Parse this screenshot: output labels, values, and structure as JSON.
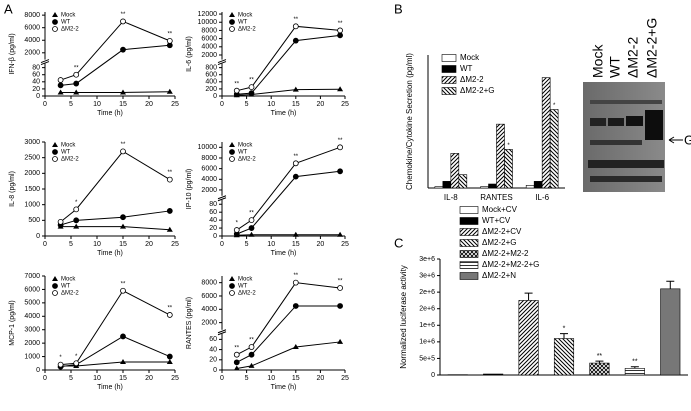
{
  "panel_labels": [
    "A",
    "B",
    "C"
  ],
  "chart_data": [
    {
      "type": "line",
      "ylabel": "IFN-β (pg/ml)",
      "xlabel": "Time (h)",
      "x": [
        3,
        6,
        15,
        24
      ],
      "xlim": [
        0,
        25
      ],
      "xticks": [
        0,
        5,
        10,
        15,
        20,
        25
      ],
      "ylim": [
        0,
        8500
      ],
      "ybreak": [
        90,
        1000
      ],
      "yticks": [
        0,
        20,
        40,
        60,
        80,
        2000,
        4000,
        6000,
        8000
      ],
      "series": [
        {
          "name": "Mock",
          "color": "#000000",
          "marker": "triangle",
          "values": [
            10,
            10,
            10,
            12
          ]
        },
        {
          "name": "WT",
          "color": "#000000",
          "marker": "circle",
          "values": [
            30,
            35,
            2500,
            3200
          ]
        },
        {
          "name": "ΔM2-2",
          "color": "#000000",
          "marker": "open-circle",
          "values": [
            45,
            60,
            7000,
            3900
          ],
          "sig": [
            null,
            "**",
            "**",
            "**"
          ]
        }
      ]
    },
    {
      "type": "line",
      "ylabel": "IL-6 (pg/ml)",
      "xlabel": "Time (h)",
      "x": [
        3,
        6,
        15,
        24
      ],
      "xlim": [
        0,
        25
      ],
      "xticks": [
        0,
        5,
        10,
        15,
        20,
        25
      ],
      "ylim": [
        0,
        12500
      ],
      "ybreak": [
        900,
        1000
      ],
      "yticks": [
        0,
        200,
        400,
        600,
        800,
        2000,
        4000,
        6000,
        8000,
        10000,
        12000
      ],
      "series": [
        {
          "name": "Mock",
          "color": "#000000",
          "marker": "triangle",
          "values": [
            20,
            40,
            180,
            190
          ]
        },
        {
          "name": "WT",
          "color": "#000000",
          "marker": "circle",
          "values": [
            50,
            80,
            5500,
            6800
          ]
        },
        {
          "name": "ΔM2-2",
          "color": "#000000",
          "marker": "open-circle",
          "values": [
            150,
            250,
            9000,
            8000
          ],
          "sig": [
            "**",
            "**",
            "**",
            "**"
          ]
        }
      ]
    },
    {
      "type": "line",
      "ylabel": "IL-8 (pg/ml)",
      "xlabel": "Time (h)",
      "x": [
        3,
        6,
        15,
        24
      ],
      "xlim": [
        0,
        25
      ],
      "xticks": [
        0,
        5,
        10,
        15,
        20,
        25
      ],
      "ylim": [
        0,
        3000
      ],
      "yticks": [
        0,
        500,
        1000,
        1500,
        2000,
        2500,
        3000
      ],
      "series": [
        {
          "name": "Mock",
          "color": "#000000",
          "marker": "triangle",
          "values": [
            300,
            300,
            300,
            200
          ]
        },
        {
          "name": "WT",
          "color": "#000000",
          "marker": "circle",
          "values": [
            350,
            500,
            600,
            800
          ]
        },
        {
          "name": "ΔM2-2",
          "color": "#000000",
          "marker": "open-circle",
          "values": [
            450,
            850,
            2700,
            1800
          ],
          "sig": [
            null,
            "*",
            "**",
            "**"
          ]
        }
      ]
    },
    {
      "type": "line",
      "ylabel": "IP-10 (pg/ml)",
      "xlabel": "Time (h)",
      "x": [
        3,
        6,
        15,
        24
      ],
      "xlim": [
        0,
        25
      ],
      "xticks": [
        0,
        5,
        10,
        15,
        20,
        25
      ],
      "ylim": [
        0,
        11000
      ],
      "ybreak": [
        90,
        1000
      ],
      "yticks": [
        0,
        20,
        40,
        60,
        80,
        2000,
        4000,
        6000,
        8000,
        10000
      ],
      "series": [
        {
          "name": "Mock",
          "color": "#000000",
          "marker": "triangle",
          "values": [
            2,
            3,
            3,
            3
          ]
        },
        {
          "name": "WT",
          "color": "#000000",
          "marker": "circle",
          "values": [
            5,
            20,
            4500,
            5500
          ]
        },
        {
          "name": "ΔM2-2",
          "color": "#000000",
          "marker": "open-circle",
          "values": [
            15,
            40,
            7000,
            10000
          ],
          "sig": [
            "*",
            "**",
            "**",
            "**"
          ]
        }
      ]
    },
    {
      "type": "line",
      "ylabel": "MCP-1 (pg/ml)",
      "xlabel": "Time (h)",
      "x": [
        3,
        6,
        15,
        24
      ],
      "xlim": [
        0,
        25
      ],
      "xticks": [
        0,
        5,
        10,
        15,
        20,
        25
      ],
      "ylim": [
        0,
        7000
      ],
      "yticks": [
        0,
        1000,
        2000,
        3000,
        4000,
        5000,
        6000,
        7000
      ],
      "series": [
        {
          "name": "Mock",
          "color": "#000000",
          "marker": "triangle",
          "values": [
            300,
            300,
            600,
            600
          ]
        },
        {
          "name": "WT",
          "color": "#000000",
          "marker": "circle",
          "values": [
            250,
            400,
            2500,
            1000
          ]
        },
        {
          "name": "ΔM2-2",
          "color": "#000000",
          "marker": "open-circle",
          "values": [
            400,
            500,
            5900,
            4100
          ],
          "sig": [
            "*",
            "*",
            "**",
            "**"
          ]
        }
      ]
    },
    {
      "type": "line",
      "ylabel": "RANTES (pg/ml)",
      "xlabel": "Time (h)",
      "x": [
        3,
        6,
        15,
        24
      ],
      "xlim": [
        0,
        25
      ],
      "xticks": [
        0,
        5,
        10,
        15,
        20,
        25
      ],
      "ylim": [
        0,
        9000
      ],
      "ybreak": [
        70,
        1000
      ],
      "yticks": [
        0,
        20,
        40,
        60,
        2000,
        4000,
        6000,
        8000
      ],
      "series": [
        {
          "name": "Mock",
          "color": "#000000",
          "marker": "triangle",
          "values": [
            3,
            8,
            45,
            55
          ]
        },
        {
          "name": "WT",
          "color": "#000000",
          "marker": "circle",
          "values": [
            15,
            30,
            4500,
            4500
          ]
        },
        {
          "name": "ΔM2-2",
          "color": "#000000",
          "marker": "open-circle",
          "values": [
            30,
            45,
            8000,
            7200
          ],
          "sig": [
            "**",
            "**",
            "**",
            "**"
          ]
        }
      ]
    },
    {
      "type": "bar",
      "ylabel": "Chemokine/Cytokine Secretion (pg/ml)",
      "categories": [
        "IL-8",
        "RANTES",
        "IL-6"
      ],
      "ylim": [
        0,
        10
      ],
      "series": [
        {
          "name": "Mock",
          "fill": "white",
          "values": [
            0.1,
            0.1,
            0.2
          ]
        },
        {
          "name": "WT",
          "fill": "black",
          "values": [
            0.5,
            0.3,
            0.5
          ]
        },
        {
          "name": "ΔM2-2",
          "fill": "hatch",
          "values": [
            2.6,
            4.8,
            8.3
          ]
        },
        {
          "name": "ΔM2-2+G",
          "fill": "backhatch",
          "values": [
            1.0,
            2.9,
            5.9
          ],
          "sig": [
            null,
            "*",
            "*"
          ]
        }
      ]
    },
    {
      "type": "bar",
      "ylabel": "Normalized luciferase activity",
      "categories": [
        "Mock+CV",
        "WT+CV",
        "ΔM2-2+CV",
        "ΔM2-2+G",
        "ΔM2-2+M2-2",
        "ΔM2-2+M2-2+G",
        "ΔM2-2+N"
      ],
      "values": [
        10000,
        30000,
        2250000,
        1100000,
        360000,
        200000,
        2600000
      ],
      "errors": [
        0,
        0,
        220000,
        150000,
        60000,
        50000,
        230000
      ],
      "sig": [
        null,
        null,
        null,
        "*",
        "**",
        "**",
        null
      ],
      "fills": [
        "white",
        "black",
        "hatch",
        "backhatch",
        "cross",
        "hlines",
        "gray"
      ],
      "ylim": [
        0,
        3500000
      ],
      "yticks": [
        0,
        {
          "value": 500000,
          "label": "5e+5"
        },
        {
          "value": 1000000,
          "label": "1e+6"
        },
        {
          "value": 1500000,
          "label": "1e+6"
        },
        {
          "value": 2000000,
          "label": "2e+6"
        },
        {
          "value": 2500000,
          "label": "2e+6"
        },
        {
          "value": 3000000,
          "label": "3e+6"
        },
        {
          "value": 3500000,
          "label": "3e+6"
        }
      ]
    }
  ],
  "blot": {
    "lanes": [
      "Mock",
      "WT",
      "ΔM2-2",
      "ΔM2-2+G"
    ],
    "marker": "G"
  }
}
